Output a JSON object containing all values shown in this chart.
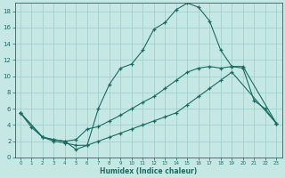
{
  "xlabel": "Humidex (Indice chaleur)",
  "bg_color": "#c5e8e4",
  "grid_color": "#9dcdc8",
  "line_color": "#1a6b62",
  "xlim": [
    -0.5,
    23.5
  ],
  "ylim": [
    0,
    19
  ],
  "xticks": [
    0,
    1,
    2,
    3,
    4,
    5,
    6,
    7,
    8,
    9,
    10,
    11,
    12,
    13,
    14,
    15,
    16,
    17,
    18,
    19,
    20,
    21,
    22,
    23
  ],
  "yticks": [
    0,
    2,
    4,
    6,
    8,
    10,
    12,
    14,
    16,
    18
  ],
  "line1_x": [
    0,
    1,
    2,
    3,
    4,
    5,
    6,
    7,
    8,
    9,
    10,
    11,
    12,
    13,
    14,
    15,
    16,
    17,
    18,
    19,
    20,
    21,
    22,
    23
  ],
  "line1_y": [
    5.5,
    3.7,
    2.5,
    2.0,
    1.8,
    1.5,
    1.5,
    6.0,
    9.0,
    11.0,
    11.5,
    13.2,
    15.8,
    16.6,
    18.2,
    19.0,
    18.5,
    16.8,
    13.2,
    11.2,
    11.0,
    7.0,
    6.0,
    4.2
  ],
  "line2_x": [
    0,
    2,
    3,
    4,
    5,
    6,
    7,
    8,
    9,
    10,
    11,
    12,
    13,
    14,
    15,
    16,
    17,
    18,
    19,
    20,
    23
  ],
  "line2_y": [
    5.5,
    2.5,
    2.2,
    2.0,
    2.2,
    3.5,
    3.8,
    4.5,
    5.2,
    6.0,
    6.8,
    7.5,
    8.5,
    9.5,
    10.5,
    11.0,
    11.2,
    11.0,
    11.2,
    11.2,
    4.2
  ],
  "line3_x": [
    0,
    2,
    3,
    4,
    5,
    6,
    7,
    8,
    9,
    10,
    11,
    12,
    13,
    14,
    15,
    16,
    17,
    18,
    19,
    23
  ],
  "line3_y": [
    5.5,
    2.5,
    2.2,
    2.0,
    1.0,
    1.5,
    2.0,
    2.5,
    3.0,
    3.5,
    4.0,
    4.5,
    5.0,
    5.5,
    6.5,
    7.5,
    8.5,
    9.5,
    10.5,
    4.2
  ]
}
